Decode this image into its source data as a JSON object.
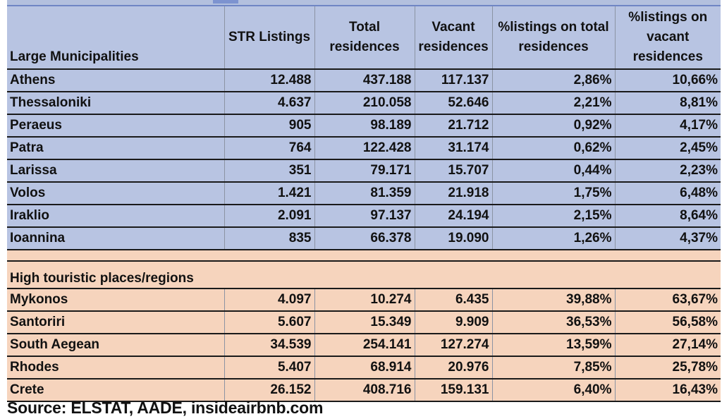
{
  "table": {
    "headers": [
      "Large Municipalities",
      "STR Listings",
      "Total residences",
      "Vacant residences",
      "%listings on total residences",
      "%listings on vacant residences"
    ],
    "section1_rows": [
      [
        "Athens",
        "12.488",
        "437.188",
        "117.137",
        "2,86%",
        "10,66%"
      ],
      [
        "Thessaloniki",
        "4.637",
        "210.058",
        "52.646",
        "2,21%",
        "8,81%"
      ],
      [
        "Peraeus",
        "905",
        "98.189",
        "21.712",
        "0,92%",
        "4,17%"
      ],
      [
        "Patra",
        "764",
        "122.428",
        "31.174",
        "0,62%",
        "2,45%"
      ],
      [
        "Larissa",
        "351",
        "79.171",
        "15.707",
        "0,44%",
        "2,23%"
      ],
      [
        "Volos",
        "1.421",
        "81.359",
        "21.918",
        "1,75%",
        "6,48%"
      ],
      [
        "Iraklio",
        "2.091",
        "97.137",
        "24.194",
        "2,15%",
        "8,64%"
      ],
      [
        "Ioannina",
        "835",
        "66.378",
        "19.090",
        "1,26%",
        "4,37%"
      ]
    ],
    "section2_title": "High touristic places/regions",
    "section2_rows": [
      [
        "Mykonos",
        "4.097",
        "10.274",
        "6.435",
        "39,88%",
        "63,67%"
      ],
      [
        "Santoriri",
        "5.607",
        "15.349",
        "9.909",
        "36,53%",
        "56,58%"
      ],
      [
        "South Aegean",
        "34.539",
        "254.141",
        "127.274",
        "13,59%",
        "27,14%"
      ],
      [
        "Rhodes",
        "5.407",
        "68.914",
        "20.976",
        "7,85%",
        "25,78%"
      ],
      [
        "Crete",
        "26.152",
        "408.716",
        "159.131",
        "6,40%",
        "16,43%"
      ]
    ]
  },
  "source": "Source: ELSTAT, AADE, insideairbnb.com",
  "colors": {
    "section1_bg": "#b8c4e2",
    "section2_bg": "#f6d4bd",
    "rule": "#1a1a1a"
  }
}
